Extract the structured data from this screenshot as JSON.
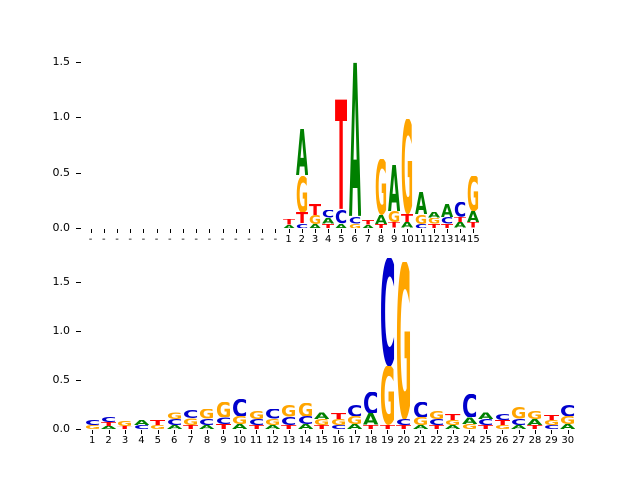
{
  "figure": {
    "background": "#ffffff"
  },
  "colors": {
    "A": "#008000",
    "C": "#0000cc",
    "G": "#ffa500",
    "T": "#ff0000"
  },
  "chart_data": [
    {
      "type": "sequence-logo",
      "panel": "top",
      "title": "",
      "ylim": [
        0,
        1.6
      ],
      "y_ticks": [
        {
          "v": 0.0,
          "label": "0.0"
        },
        {
          "v": 0.5,
          "label": "0.5"
        },
        {
          "v": 1.0,
          "label": "1.0"
        },
        {
          "v": 1.5,
          "label": "1.5"
        }
      ],
      "positions": [
        {
          "label": "-",
          "letters": []
        },
        {
          "label": "-",
          "letters": []
        },
        {
          "label": "-",
          "letters": []
        },
        {
          "label": "-",
          "letters": []
        },
        {
          "label": "-",
          "letters": []
        },
        {
          "label": "-",
          "letters": []
        },
        {
          "label": "-",
          "letters": []
        },
        {
          "label": "-",
          "letters": []
        },
        {
          "label": "-",
          "letters": []
        },
        {
          "label": "-",
          "letters": []
        },
        {
          "label": "-",
          "letters": []
        },
        {
          "label": "-",
          "letters": []
        },
        {
          "label": "-",
          "letters": []
        },
        {
          "label": "-",
          "letters": []
        },
        {
          "label": "-",
          "letters": []
        },
        {
          "label": "1",
          "letters": [
            [
              "A",
              0.03
            ],
            [
              "T",
              0.05
            ]
          ]
        },
        {
          "label": "2",
          "letters": [
            [
              "C",
              0.04
            ],
            [
              "T",
              0.1
            ],
            [
              "G",
              0.33
            ],
            [
              "A",
              0.42
            ]
          ]
        },
        {
          "label": "3",
          "letters": [
            [
              "A",
              0.04
            ],
            [
              "G",
              0.08
            ],
            [
              "T",
              0.1
            ]
          ]
        },
        {
          "label": "4",
          "letters": [
            [
              "T",
              0.04
            ],
            [
              "A",
              0.05
            ],
            [
              "C",
              0.07
            ]
          ]
        },
        {
          "label": "5",
          "letters": [
            [
              "A",
              0.04
            ],
            [
              "C",
              0.12
            ],
            [
              "T",
              1.0
            ]
          ]
        },
        {
          "label": "6",
          "letters": [
            [
              "G",
              0.04
            ],
            [
              "C",
              0.06
            ],
            [
              "A",
              1.4
            ]
          ]
        },
        {
          "label": "7",
          "letters": [
            [
              "A",
              0.03
            ],
            [
              "T",
              0.04
            ]
          ]
        },
        {
          "label": "8",
          "letters": [
            [
              "T",
              0.04
            ],
            [
              "A",
              0.08
            ],
            [
              "G",
              0.5
            ]
          ]
        },
        {
          "label": "9",
          "letters": [
            [
              "T",
              0.05
            ],
            [
              "G",
              0.1
            ],
            [
              "A",
              0.42
            ]
          ]
        },
        {
          "label": "10",
          "letters": [
            [
              "A",
              0.05
            ],
            [
              "T",
              0.08
            ],
            [
              "G",
              0.85
            ]
          ]
        },
        {
          "label": "11",
          "letters": [
            [
              "C",
              0.04
            ],
            [
              "G",
              0.08
            ],
            [
              "A",
              0.2
            ]
          ]
        },
        {
          "label": "12",
          "letters": [
            [
              "T",
              0.04
            ],
            [
              "G",
              0.05
            ],
            [
              "A",
              0.05
            ]
          ]
        },
        {
          "label": "13",
          "letters": [
            [
              "T",
              0.04
            ],
            [
              "C",
              0.06
            ],
            [
              "A",
              0.12
            ]
          ]
        },
        {
          "label": "14",
          "letters": [
            [
              "A",
              0.05
            ],
            [
              "T",
              0.05
            ],
            [
              "C",
              0.13
            ]
          ]
        },
        {
          "label": "15",
          "letters": [
            [
              "T",
              0.05
            ],
            [
              "A",
              0.1
            ],
            [
              "G",
              0.32
            ]
          ]
        }
      ]
    },
    {
      "type": "sequence-logo",
      "panel": "bottom",
      "title": "",
      "ylim": [
        0,
        1.8
      ],
      "y_ticks": [
        {
          "v": 0.0,
          "label": "0.0"
        },
        {
          "v": 0.5,
          "label": "0.5"
        },
        {
          "v": 1.0,
          "label": "1.0"
        },
        {
          "v": 1.5,
          "label": "1.5"
        }
      ],
      "positions": [
        {
          "label": "1",
          "letters": [
            [
              "G",
              0.04
            ],
            [
              "C",
              0.05
            ]
          ]
        },
        {
          "label": "2",
          "letters": [
            [
              "A",
              0.03
            ],
            [
              "T",
              0.04
            ],
            [
              "C",
              0.05
            ]
          ]
        },
        {
          "label": "3",
          "letters": [
            [
              "T",
              0.03
            ],
            [
              "G",
              0.05
            ]
          ]
        },
        {
          "label": "4",
          "letters": [
            [
              "C",
              0.04
            ],
            [
              "A",
              0.05
            ]
          ]
        },
        {
          "label": "5",
          "letters": [
            [
              "G",
              0.04
            ],
            [
              "T",
              0.05
            ]
          ]
        },
        {
          "label": "6",
          "letters": [
            [
              "A",
              0.04
            ],
            [
              "C",
              0.06
            ],
            [
              "G",
              0.07
            ]
          ]
        },
        {
          "label": "7",
          "letters": [
            [
              "T",
              0.04
            ],
            [
              "G",
              0.07
            ],
            [
              "C",
              0.08
            ]
          ]
        },
        {
          "label": "8",
          "letters": [
            [
              "A",
              0.04
            ],
            [
              "C",
              0.06
            ],
            [
              "G",
              0.1
            ]
          ]
        },
        {
          "label": "9",
          "letters": [
            [
              "T",
              0.05
            ],
            [
              "C",
              0.07
            ],
            [
              "G",
              0.16
            ]
          ]
        },
        {
          "label": "10",
          "letters": [
            [
              "A",
              0.05
            ],
            [
              "G",
              0.08
            ],
            [
              "C",
              0.18
            ]
          ]
        },
        {
          "label": "11",
          "letters": [
            [
              "T",
              0.04
            ],
            [
              "C",
              0.06
            ],
            [
              "G",
              0.08
            ]
          ]
        },
        {
          "label": "12",
          "letters": [
            [
              "A",
              0.04
            ],
            [
              "G",
              0.06
            ],
            [
              "C",
              0.1
            ]
          ]
        },
        {
          "label": "13",
          "letters": [
            [
              "T",
              0.04
            ],
            [
              "C",
              0.08
            ],
            [
              "G",
              0.12
            ]
          ]
        },
        {
          "label": "14",
          "letters": [
            [
              "A",
              0.05
            ],
            [
              "C",
              0.08
            ],
            [
              "G",
              0.14
            ]
          ]
        },
        {
          "label": "15",
          "letters": [
            [
              "T",
              0.04
            ],
            [
              "G",
              0.06
            ],
            [
              "A",
              0.07
            ]
          ]
        },
        {
          "label": "16",
          "letters": [
            [
              "C",
              0.04
            ],
            [
              "G",
              0.06
            ],
            [
              "T",
              0.06
            ]
          ]
        },
        {
          "label": "17",
          "letters": [
            [
              "A",
              0.05
            ],
            [
              "G",
              0.08
            ],
            [
              "C",
              0.12
            ]
          ]
        },
        {
          "label": "18",
          "letters": [
            [
              "T",
              0.04
            ],
            [
              "A",
              0.12
            ],
            [
              "C",
              0.22
            ]
          ]
        },
        {
          "label": "19",
          "letters": [
            [
              "T",
              0.04
            ],
            [
              "G",
              0.6
            ],
            [
              "C",
              1.1
            ]
          ]
        },
        {
          "label": "20",
          "letters": [
            [
              "T",
              0.04
            ],
            [
              "C",
              0.06
            ],
            [
              "G",
              1.6
            ]
          ]
        },
        {
          "label": "21",
          "letters": [
            [
              "A",
              0.04
            ],
            [
              "G",
              0.08
            ],
            [
              "C",
              0.16
            ]
          ]
        },
        {
          "label": "22",
          "letters": [
            [
              "T",
              0.04
            ],
            [
              "C",
              0.06
            ],
            [
              "G",
              0.08
            ]
          ]
        },
        {
          "label": "23",
          "letters": [
            [
              "A",
              0.04
            ],
            [
              "G",
              0.05
            ],
            [
              "T",
              0.06
            ]
          ]
        },
        {
          "label": "24",
          "letters": [
            [
              "G",
              0.05
            ],
            [
              "A",
              0.07
            ],
            [
              "C",
              0.24
            ]
          ]
        },
        {
          "label": "25",
          "letters": [
            [
              "T",
              0.04
            ],
            [
              "C",
              0.06
            ],
            [
              "A",
              0.07
            ]
          ]
        },
        {
          "label": "26",
          "letters": [
            [
              "G",
              0.04
            ],
            [
              "T",
              0.05
            ],
            [
              "C",
              0.06
            ]
          ]
        },
        {
          "label": "27",
          "letters": [
            [
              "A",
              0.04
            ],
            [
              "C",
              0.06
            ],
            [
              "G",
              0.12
            ]
          ]
        },
        {
          "label": "28",
          "letters": [
            [
              "T",
              0.04
            ],
            [
              "A",
              0.06
            ],
            [
              "G",
              0.08
            ]
          ]
        },
        {
          "label": "29",
          "letters": [
            [
              "C",
              0.04
            ],
            [
              "G",
              0.05
            ],
            [
              "T",
              0.05
            ]
          ]
        },
        {
          "label": "30",
          "letters": [
            [
              "A",
              0.05
            ],
            [
              "G",
              0.08
            ],
            [
              "C",
              0.12
            ]
          ]
        }
      ]
    }
  ]
}
